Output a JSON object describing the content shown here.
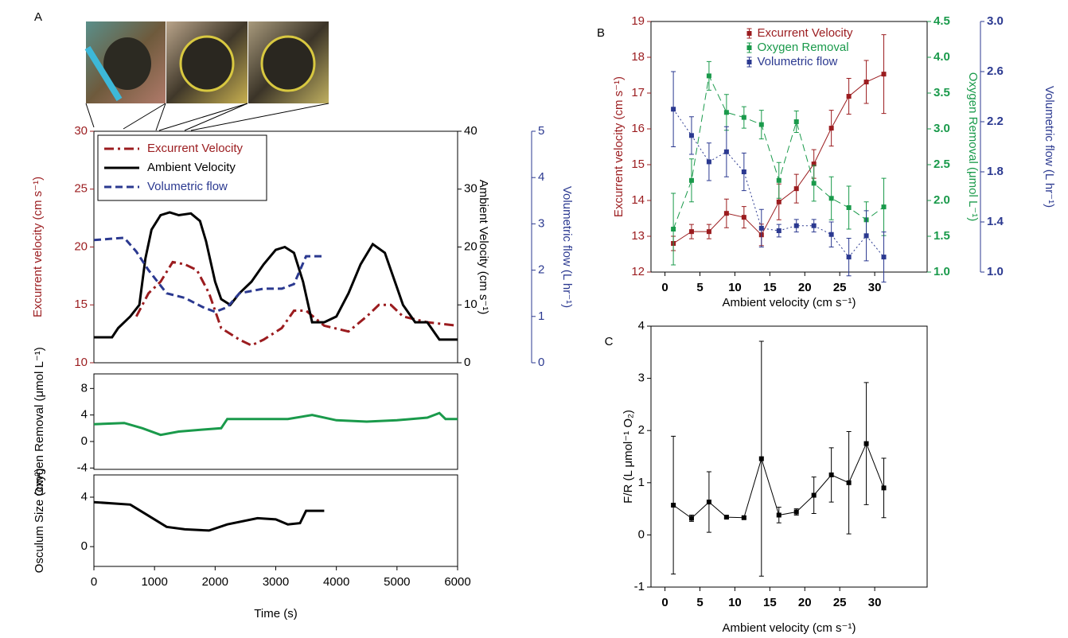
{
  "chart_data": [
    {
      "type": "line",
      "panel_label": "A",
      "ylabel": "Excurrent velocity (cm s⁻¹)",
      "y2label": "Ambient Velocity (cm s⁻¹)",
      "y3label": "Volumetric flow (L hr⁻¹)",
      "xlim": [
        0,
        6000
      ],
      "ylim": [
        10,
        30
      ],
      "yticks": [
        10,
        15,
        20,
        25,
        30
      ],
      "y2lim": [
        0,
        40
      ],
      "y2ticks": [
        0,
        10,
        20,
        30,
        40
      ],
      "y3lim": [
        0,
        5
      ],
      "y3ticks": [
        0,
        1,
        2,
        3,
        4,
        5
      ],
      "legend": "upper left",
      "series": [
        {
          "name": "Excurrent Velocity",
          "color": "#9b1c1f",
          "linestyle": "dashdot",
          "axis": "y",
          "x": [
            700,
            900,
            1100,
            1300,
            1500,
            1700,
            1900,
            2100,
            2400,
            2600,
            2800,
            3100,
            3300,
            3500,
            3800,
            4200,
            4500,
            4700,
            4900,
            5100,
            5500,
            6000
          ],
          "values": [
            14,
            16,
            17,
            18.7,
            18.5,
            18,
            16,
            13,
            12,
            11.5,
            12,
            13,
            14.5,
            14.5,
            13.2,
            12.7,
            14,
            15,
            15,
            14,
            13.5,
            13.2
          ]
        },
        {
          "name": "Ambient Velocity",
          "color": "#000000",
          "linestyle": "solid",
          "axis": "y2",
          "x": [
            0,
            300,
            400,
            600,
            750,
            850,
            950,
            1100,
            1250,
            1400,
            1600,
            1750,
            1850,
            2000,
            2100,
            2250,
            2400,
            2600,
            2800,
            3000,
            3150,
            3300,
            3450,
            3600,
            3800,
            4000,
            4200,
            4400,
            4600,
            4800,
            4900,
            5000,
            5100,
            5300,
            5500,
            5700,
            6000
          ],
          "values": [
            4.4,
            4.4,
            6,
            8,
            10,
            18,
            23,
            25.5,
            26,
            25.5,
            25.8,
            24.5,
            21,
            14,
            11,
            10,
            12,
            14,
            17,
            19.5,
            20,
            19,
            14,
            7,
            7,
            8,
            12,
            17,
            20.5,
            19,
            16,
            13,
            10,
            7,
            7,
            4,
            4
          ]
        },
        {
          "name": "Volumetric flow",
          "color": "#2b3990",
          "linestyle": "dashed",
          "axis": "y3",
          "x": [
            0,
            500,
            700,
            900,
            1200,
            1500,
            1800,
            2000,
            2200,
            2400,
            2800,
            3100,
            3300,
            3500,
            3800
          ],
          "values": [
            2.65,
            2.7,
            2.4,
            2.0,
            1.5,
            1.4,
            1.2,
            1.1,
            1.2,
            1.5,
            1.6,
            1.6,
            1.7,
            2.3,
            2.3
          ]
        }
      ]
    },
    {
      "type": "line",
      "ylabel": "Oxygen Removal (μmol L⁻¹)",
      "xlim": [
        0,
        6000
      ],
      "ylim": [
        -4.2,
        10.2
      ],
      "yticks": [
        -4,
        0,
        4,
        8
      ],
      "series": [
        {
          "color": "#1a9a4b",
          "linestyle": "solid",
          "axis": "y",
          "x": [
            0,
            500,
            800,
            1100,
            1400,
            1800,
            2100,
            2200,
            2800,
            3200,
            3600,
            4000,
            4500,
            5000,
            5500,
            5700,
            5800,
            6000
          ],
          "values": [
            2.6,
            2.8,
            2,
            1,
            1.5,
            1.8,
            2,
            3.4,
            3.4,
            3.4,
            4,
            3.2,
            3,
            3.2,
            3.6,
            4.3,
            3.4,
            3.4
          ]
        }
      ]
    },
    {
      "type": "line",
      "ylabel": "Osculum Size (cm²)",
      "xlabel": "Time (s)",
      "xlim": [
        0,
        6000
      ],
      "xticks": [
        0,
        1000,
        2000,
        3000,
        4000,
        5000,
        6000
      ],
      "ylim": [
        -1.6,
        5.8
      ],
      "yticks": [
        0,
        4
      ],
      "series": [
        {
          "color": "#000000",
          "linestyle": "solid",
          "axis": "y",
          "x": [
            0,
            600,
            900,
            1200,
            1500,
            1900,
            2200,
            2700,
            3000,
            3200,
            3400,
            3500,
            3800
          ],
          "values": [
            3.6,
            3.4,
            2.5,
            1.6,
            1.4,
            1.3,
            1.8,
            2.3,
            2.2,
            1.8,
            1.9,
            2.9,
            2.9
          ]
        }
      ]
    },
    {
      "type": "errorbar",
      "panel_label": "B",
      "xlabel": "Ambient velocity (cm s⁻¹)",
      "ylabel": "Excurrent velocity (cm s⁻¹)",
      "y2label": "Oxygen Removal (μmol L⁻¹)",
      "y3label": "Volumetric flow (L hr⁻¹)",
      "xlim": [
        -2,
        37.5
      ],
      "xticks": [
        0,
        5,
        10,
        15,
        20,
        25,
        30
      ],
      "ylim": [
        12,
        19
      ],
      "yticks": [
        12,
        13,
        14,
        15,
        16,
        17,
        18,
        19
      ],
      "y2lim": [
        1,
        4.5
      ],
      "y2ticks": [
        {
          "value": 1,
          "label": "1.0"
        },
        1.5,
        {
          "value": 2,
          "label": "2.0"
        },
        2.5,
        {
          "value": 3,
          "label": "3.0"
        },
        3.5,
        {
          "value": 4,
          "label": "4.0"
        },
        4.5
      ],
      "y3lim": [
        1,
        3
      ],
      "y3ticks": [
        {
          "value": 1,
          "label": "1.0"
        },
        1.4,
        1.8,
        2.2,
        2.6,
        {
          "value": 3,
          "label": "3.0"
        }
      ],
      "legend": "upper center",
      "x": [
        1.2,
        3.8,
        6.3,
        8.8,
        11.3,
        13.8,
        16.3,
        18.8,
        21.3,
        23.8,
        26.3,
        28.8,
        31.3
      ],
      "series": [
        {
          "name": "Excurrent Velocity",
          "color": "#9b1c1f",
          "linestyle": "solid",
          "axis": "y",
          "values": [
            12.8,
            13.13,
            13.13,
            13.64,
            13.53,
            13.04,
            13.96,
            14.33,
            15.02,
            16.02,
            16.91,
            17.31,
            17.53
          ],
          "errors": [
            0.2,
            0.2,
            0.2,
            0.4,
            0.3,
            0.3,
            0.5,
            0.4,
            0.4,
            0.5,
            0.5,
            0.6,
            1.1
          ]
        },
        {
          "name": "Oxygen Removal",
          "color": "#1a9a4b",
          "linestyle": "dashed",
          "axis": "y2",
          "values": [
            1.6,
            2.28,
            3.74,
            3.23,
            3.16,
            3.06,
            2.28,
            3.1,
            2.24,
            2.03,
            1.9,
            1.73,
            1.91
          ],
          "errors": [
            0.5,
            0.3,
            0.2,
            0.25,
            0.15,
            0.2,
            0.25,
            0.15,
            0.25,
            0.3,
            0.3,
            0.25,
            0.4
          ]
        },
        {
          "name": "Volumetric flow",
          "color": "#2b3990",
          "linestyle": "dotted",
          "axis": "y3",
          "values": [
            2.3,
            2.09,
            1.88,
            1.96,
            1.8,
            1.35,
            1.33,
            1.37,
            1.37,
            1.3,
            1.12,
            1.29,
            1.12
          ],
          "errors": [
            0.3,
            0.15,
            0.15,
            0.2,
            0.15,
            0.15,
            0.05,
            0.05,
            0.05,
            0.1,
            0.15,
            0.2,
            0.2
          ]
        }
      ]
    },
    {
      "type": "errorbar",
      "panel_label": "C",
      "xlabel": "Ambient velocity (cm s⁻¹)",
      "ylabel": "F/R (L μmol⁻¹ O₂)",
      "xlim": [
        -2,
        37.5
      ],
      "xticks": [
        0,
        5,
        10,
        15,
        20,
        25,
        30
      ],
      "ylim": [
        -1,
        4
      ],
      "yticks": [
        -1,
        0,
        1,
        2,
        3,
        4
      ],
      "x": [
        1.2,
        3.8,
        6.3,
        8.8,
        11.3,
        13.8,
        16.3,
        18.8,
        21.3,
        23.8,
        26.3,
        28.8,
        31.3
      ],
      "series": [
        {
          "color": "#000000",
          "linestyle": "solid",
          "axis": "y",
          "values": [
            0.57,
            0.32,
            0.63,
            0.34,
            0.33,
            1.46,
            0.38,
            0.44,
            0.76,
            1.15,
            1.0,
            1.75,
            0.9
          ],
          "errors": [
            1.32,
            0.06,
            0.58,
            0.02,
            0.02,
            2.25,
            0.15,
            0.06,
            0.35,
            0.52,
            0.98,
            1.17,
            0.57
          ]
        }
      ]
    }
  ]
}
